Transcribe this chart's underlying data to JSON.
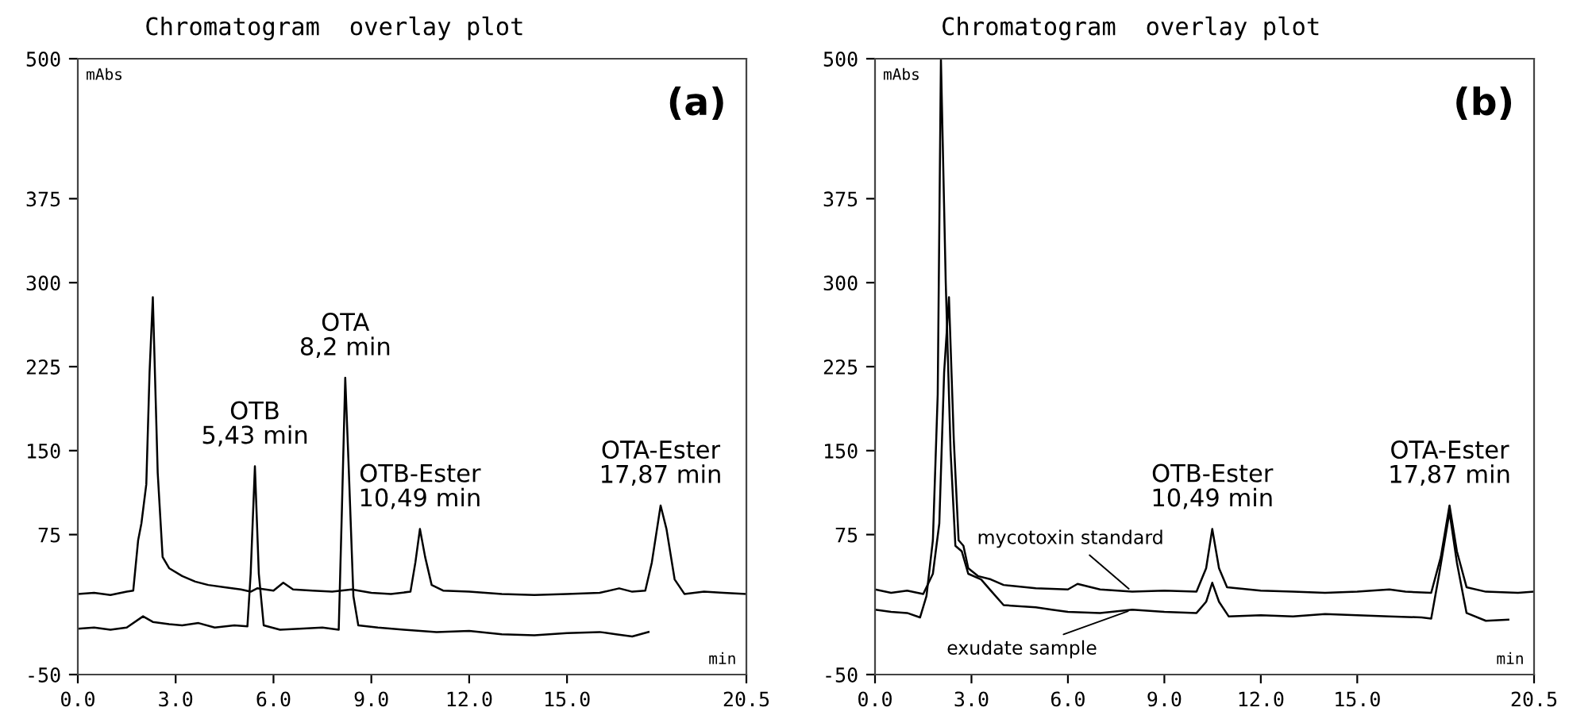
{
  "chart_data": [
    {
      "type": "line",
      "title": "Chromatogram  overlay plot",
      "xlabel": "min",
      "ylabel": "mAbs",
      "xlim": [
        0,
        20.5
      ],
      "ylim": [
        -50,
        500
      ],
      "xticks": [
        {
          "value": 0,
          "label": "0.0"
        },
        {
          "value": 3,
          "label": "3.0"
        },
        {
          "value": 6,
          "label": "6.0"
        },
        {
          "value": 9,
          "label": "9.0"
        },
        {
          "value": 12,
          "label": "12.0"
        },
        {
          "value": 15,
          "label": "15.0"
        },
        {
          "value": 20.5,
          "label": "20.5"
        }
      ],
      "yticks": [
        -50,
        75,
        150,
        225,
        300,
        375,
        500
      ],
      "grid": false,
      "legend": false,
      "annotations": [
        "(a)",
        {
          "text": "OTB\n5,43 min",
          "x": 5.43,
          "y": 136
        },
        {
          "text": "OTA\n8,2 min",
          "x": 8.2,
          "y": 215
        },
        {
          "text": "OTB-Ester\n10,49 min",
          "x": 10.49,
          "y": 80
        },
        {
          "text": "OTA-Ester\n17,87 min",
          "x": 17.87,
          "y": 101
        }
      ],
      "series": [
        {
          "color": "#000000",
          "x": [
            0,
            0.5,
            1.0,
            1.5,
            1.7,
            1.85,
            1.95,
            2.1,
            2.2,
            2.3,
            2.45,
            2.6,
            2.8,
            3.2,
            3.6,
            4.0,
            4.5,
            5.0,
            5.3,
            5.5,
            6.0,
            6.3,
            6.6,
            7.2,
            7.8,
            8.4,
            9.0,
            9.6,
            10.2,
            10.35,
            10.49,
            10.65,
            10.85,
            11.2,
            12.0,
            13.0,
            14.0,
            15.0,
            16.0,
            16.6,
            17.0,
            17.4,
            17.6,
            17.87,
            18.05,
            18.3,
            18.6,
            19.2,
            19.8,
            20.5
          ],
          "values": [
            22,
            23,
            21,
            24,
            25,
            70,
            85,
            120,
            220,
            287,
            130,
            55,
            45,
            38,
            33,
            30,
            28,
            26,
            24,
            27,
            25,
            32,
            26,
            25,
            24,
            26,
            23,
            22,
            24,
            50,
            80,
            55,
            30,
            25,
            24,
            22,
            21,
            22,
            23,
            27,
            24,
            25,
            50,
            101,
            80,
            35,
            22,
            24,
            23,
            22
          ]
        },
        {
          "color": "#000000",
          "x": [
            0,
            0.5,
            1.0,
            1.5,
            2.0,
            2.3,
            2.8,
            3.2,
            3.7,
            4.2,
            4.8,
            5.2,
            5.3,
            5.43,
            5.55,
            5.7,
            6.2,
            6.8,
            7.5,
            8.0,
            8.1,
            8.2,
            8.3,
            8.45,
            8.6,
            9.2,
            10.0,
            11.0,
            12.0,
            13.0,
            14.0,
            15.0,
            16.0,
            16.5,
            17.0,
            17.5
          ],
          "values": [
            -9,
            -8,
            -10,
            -8,
            2,
            -3,
            -5,
            -6,
            -4,
            -8,
            -6,
            -7,
            40,
            136,
            40,
            -6,
            -10,
            -9,
            -8,
            -10,
            100,
            215,
            140,
            20,
            -6,
            -8,
            -10,
            -12,
            -11,
            -14,
            -15,
            -13,
            -12,
            -14,
            -16,
            -12
          ]
        }
      ]
    },
    {
      "type": "line",
      "title": "Chromatogram  overlay plot",
      "xlabel": "min",
      "ylabel": "mAbs",
      "xlim": [
        0,
        20.5
      ],
      "ylim": [
        -50,
        500
      ],
      "xticks": [
        {
          "value": 0,
          "label": "0.0"
        },
        {
          "value": 3,
          "label": "3.0"
        },
        {
          "value": 6,
          "label": "6.0"
        },
        {
          "value": 9,
          "label": "9.0"
        },
        {
          "value": 12,
          "label": "12.0"
        },
        {
          "value": 15,
          "label": "15.0"
        },
        {
          "value": 20.5,
          "label": "20.5"
        }
      ],
      "yticks": [
        -50,
        75,
        150,
        225,
        300,
        375,
        500
      ],
      "grid": false,
      "annotations": [
        "(b)",
        {
          "text": "OTB-Ester\n10,49 min",
          "x": 10.49,
          "y": 80
        },
        {
          "text": "OTA-Ester\n17,87 min",
          "x": 17.87,
          "y": 101
        }
      ],
      "series": [
        {
          "name": "mycotoxin standard",
          "color": "#000000",
          "x": [
            0,
            0.5,
            1.0,
            1.5,
            1.8,
            2.0,
            2.15,
            2.3,
            2.45,
            2.6,
            2.75,
            2.9,
            3.2,
            3.6,
            4.0,
            5.0,
            6.0,
            6.3,
            7.0,
            8.0,
            9.0,
            10.0,
            10.3,
            10.49,
            10.7,
            10.95,
            12.0,
            13.0,
            14.0,
            15.0,
            16.0,
            16.5,
            17.3,
            17.6,
            17.87,
            18.1,
            18.4,
            19.0,
            20.0,
            20.5
          ],
          "values": [
            26,
            23,
            25,
            22,
            40,
            85,
            220,
            287,
            160,
            70,
            65,
            45,
            38,
            35,
            30,
            27,
            26,
            31,
            26,
            24,
            25,
            24,
            45,
            80,
            45,
            28,
            25,
            24,
            23,
            24,
            26,
            24,
            23,
            55,
            101,
            60,
            28,
            24,
            23,
            24
          ]
        },
        {
          "name": "exudate sample",
          "color": "#000000",
          "x": [
            0,
            0.5,
            1.0,
            1.4,
            1.6,
            1.8,
            1.95,
            2.05,
            2.2,
            2.35,
            2.5,
            2.7,
            2.9,
            3.3,
            3.6,
            4.0,
            5.0,
            5.5,
            6.0,
            7.0,
            8.0,
            9.0,
            10.0,
            10.3,
            10.49,
            10.7,
            11.0,
            12.0,
            13.0,
            14.0,
            15.0,
            16.0,
            17.0,
            17.3,
            17.55,
            17.87,
            18.1,
            18.4,
            19.0,
            19.7
          ],
          "values": [
            8,
            6,
            5,
            1,
            20,
            70,
            200,
            500,
            300,
            150,
            65,
            60,
            40,
            35,
            25,
            12,
            10,
            8,
            6,
            5,
            8,
            6,
            5,
            15,
            32,
            15,
            2,
            3,
            2,
            4,
            3,
            2,
            1,
            0,
            40,
            95,
            50,
            5,
            -2,
            -1
          ]
        }
      ]
    }
  ]
}
